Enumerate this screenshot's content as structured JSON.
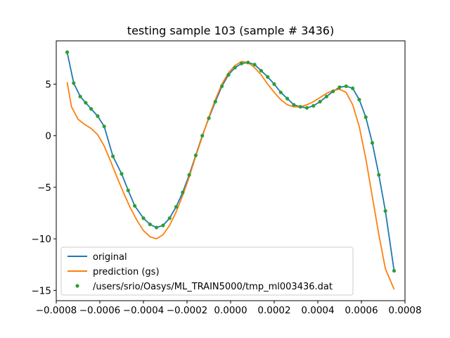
{
  "chart_data": {
    "type": "line",
    "title": "testing sample 103 (sample # 3436)",
    "xlabel": "",
    "ylabel": "",
    "xlim": [
      -0.0008,
      0.0008
    ],
    "ylim": [
      -16.0,
      9.2
    ],
    "x_ticks": [
      {
        "value": -0.0008,
        "label": "−0.0008"
      },
      {
        "value": -0.0006,
        "label": "−0.0006"
      },
      {
        "value": -0.0004,
        "label": "−0.0004"
      },
      {
        "value": -0.0002,
        "label": "−0.0002"
      },
      {
        "value": 0.0,
        "label": "0.0000"
      },
      {
        "value": 0.0002,
        "label": "0.0002"
      },
      {
        "value": 0.0004,
        "label": "0.0004"
      },
      {
        "value": 0.0006,
        "label": "0.0006"
      },
      {
        "value": 0.0008,
        "label": "0.0008"
      }
    ],
    "y_ticks": [
      {
        "value": 5,
        "label": "5"
      },
      {
        "value": 0,
        "label": "0"
      },
      {
        "value": -5,
        "label": "−5"
      },
      {
        "value": -10,
        "label": "−10"
      },
      {
        "value": -15,
        "label": "−15"
      }
    ],
    "grid": false,
    "legend_position": "lower-left",
    "series": [
      {
        "name": "original",
        "style": "line",
        "color": "#1f77b4",
        "x": [
          -0.00075,
          -0.00072,
          -0.00069,
          -0.000665,
          -0.00064,
          -0.00061,
          -0.00058,
          -0.00054,
          -0.0005,
          -0.00047,
          -0.00044,
          -0.0004,
          -0.00037,
          -0.00034,
          -0.00031,
          -0.00028,
          -0.00025,
          -0.00022,
          -0.00019,
          -0.00016,
          -0.00013,
          -0.0001,
          -7e-05,
          -4e-05,
          -1e-05,
          2e-05,
          5e-05,
          8e-05,
          0.00011,
          0.00014,
          0.00017,
          0.0002,
          0.00023,
          0.00026,
          0.00029,
          0.00032,
          0.00035,
          0.00038,
          0.00041,
          0.00044,
          0.00047,
          0.0005,
          0.00053,
          0.00056,
          0.00059,
          0.00062,
          0.00065,
          0.00068,
          0.00071,
          0.00075
        ],
        "y": [
          8.1,
          5.1,
          3.8,
          3.2,
          2.6,
          1.9,
          0.9,
          -2.0,
          -3.7,
          -5.3,
          -6.8,
          -8.0,
          -8.6,
          -8.9,
          -8.7,
          -8.0,
          -6.9,
          -5.5,
          -3.8,
          -1.9,
          0.0,
          1.7,
          3.3,
          4.8,
          5.9,
          6.6,
          7.0,
          7.1,
          6.9,
          6.3,
          5.7,
          5.0,
          4.2,
          3.6,
          3.0,
          2.8,
          2.7,
          2.9,
          3.3,
          3.8,
          4.3,
          4.7,
          4.8,
          4.6,
          3.5,
          1.8,
          -0.7,
          -3.8,
          -7.3,
          -13.1
        ]
      },
      {
        "name": "prediction (gs)",
        "style": "line",
        "color": "#ff7f0e",
        "x": [
          -0.00075,
          -0.00073,
          -0.0007,
          -0.00067,
          -0.00064,
          -0.00061,
          -0.00058,
          -0.00055,
          -0.00052,
          -0.00049,
          -0.00046,
          -0.00043,
          -0.0004,
          -0.00037,
          -0.00034,
          -0.00031,
          -0.00028,
          -0.00025,
          -0.00022,
          -0.00019,
          -0.00016,
          -0.00013,
          -0.0001,
          -7e-05,
          -4e-05,
          -1e-05,
          2e-05,
          5e-05,
          8e-05,
          0.00011,
          0.00014,
          0.00017,
          0.0002,
          0.00023,
          0.00026,
          0.00029,
          0.00032,
          0.00035,
          0.00038,
          0.00041,
          0.00044,
          0.00047,
          0.0005,
          0.00053,
          0.00056,
          0.00059,
          0.00062,
          0.00065,
          0.00068,
          0.00071,
          0.00075
        ],
        "y": [
          5.2,
          2.8,
          1.6,
          1.1,
          0.7,
          0.1,
          -1.0,
          -2.5,
          -4.1,
          -5.6,
          -7.0,
          -8.2,
          -9.2,
          -9.8,
          -10.0,
          -9.6,
          -8.7,
          -7.4,
          -5.8,
          -4.0,
          -2.0,
          -0.1,
          1.8,
          3.5,
          5.0,
          6.1,
          6.8,
          7.2,
          7.1,
          6.6,
          5.9,
          5.0,
          4.2,
          3.5,
          3.0,
          2.8,
          2.8,
          3.0,
          3.3,
          3.7,
          4.1,
          4.4,
          4.5,
          4.2,
          3.0,
          0.9,
          -2.2,
          -5.9,
          -9.6,
          -12.9,
          -14.9
        ]
      },
      {
        "name": "/users/srio/Oasys/ML_TRAIN5000/tmp_ml003436.dat",
        "style": "points",
        "color": "#2ca02c",
        "x": [
          -0.00075,
          -0.00072,
          -0.00069,
          -0.000665,
          -0.00064,
          -0.00061,
          -0.00058,
          -0.00054,
          -0.0005,
          -0.00047,
          -0.00044,
          -0.0004,
          -0.00037,
          -0.00034,
          -0.00031,
          -0.00028,
          -0.00025,
          -0.00022,
          -0.00019,
          -0.00016,
          -0.00013,
          -0.0001,
          -7e-05,
          -4e-05,
          -1e-05,
          2e-05,
          5e-05,
          8e-05,
          0.00011,
          0.00014,
          0.00017,
          0.0002,
          0.00023,
          0.00026,
          0.00029,
          0.00032,
          0.00035,
          0.00038,
          0.00041,
          0.00044,
          0.00047,
          0.0005,
          0.00053,
          0.00056,
          0.00059,
          0.00062,
          0.00065,
          0.00068,
          0.00071,
          0.00075
        ],
        "y": [
          8.1,
          5.1,
          3.8,
          3.2,
          2.6,
          1.9,
          0.9,
          -2.0,
          -3.7,
          -5.3,
          -6.8,
          -8.0,
          -8.6,
          -8.9,
          -8.7,
          -8.0,
          -6.9,
          -5.5,
          -3.8,
          -1.9,
          0.0,
          1.7,
          3.3,
          4.8,
          5.9,
          6.6,
          7.0,
          7.1,
          6.9,
          6.3,
          5.7,
          5.0,
          4.2,
          3.6,
          3.0,
          2.8,
          2.7,
          2.9,
          3.3,
          3.8,
          4.3,
          4.7,
          4.8,
          4.6,
          3.5,
          1.8,
          -0.7,
          -3.8,
          -7.3,
          -13.1
        ]
      }
    ]
  }
}
